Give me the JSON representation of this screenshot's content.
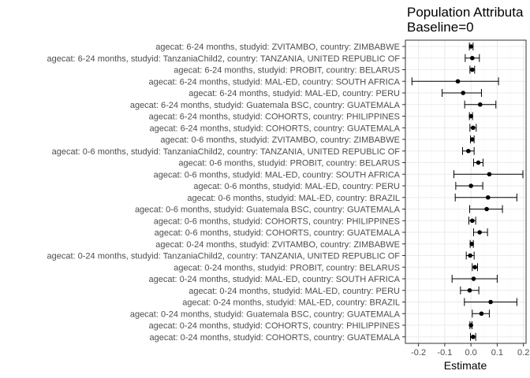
{
  "chart_data": {
    "type": "forest",
    "title": [
      "Population Attributa",
      "Baseline=0"
    ],
    "xlabel": "Estimate",
    "ylabel": "",
    "xlim": [
      -0.25,
      0.21
    ],
    "xticks": [
      -0.2,
      -0.1,
      0.0,
      0.1,
      0.2
    ],
    "xtick_labels": [
      "-0.2",
      "-0.1",
      "0.0",
      "0.1",
      "0.2"
    ],
    "grid": true,
    "colors": {
      "panel_border": "#333333",
      "grid_major": "#ebebeb",
      "grid_minor": "#f5f5f5",
      "point": "#000000",
      "text": "#4d4d4d"
    },
    "rows": [
      {
        "label": "agecat: 6-24 months, studyid: ZVITAMBO, country: ZIMBABWE",
        "estimate": 0.0,
        "lower": -0.006,
        "upper": 0.008
      },
      {
        "label": "agecat: 6-24 months, studyid: TanzaniaChild2, country: TANZANIA, UNITED REPUBLIC OF",
        "estimate": 0.005,
        "lower": -0.022,
        "upper": 0.032
      },
      {
        "label": "agecat: 6-24 months, studyid: PROBIT, country: BELARUS",
        "estimate": 0.005,
        "lower": -0.004,
        "upper": 0.014
      },
      {
        "label": "agecat: 6-24 months, studyid: MAL-ED, country: SOUTH AFRICA",
        "estimate": -0.05,
        "lower": -0.225,
        "upper": 0.105
      },
      {
        "label": "agecat: 6-24 months, studyid: MAL-ED, country: PERU",
        "estimate": -0.03,
        "lower": -0.11,
        "upper": 0.04
      },
      {
        "label": "agecat: 6-24 months, studyid: Guatemala BSC, country: GUATEMALA",
        "estimate": 0.035,
        "lower": -0.024,
        "upper": 0.095
      },
      {
        "label": "agecat: 6-24 months, studyid: COHORTS, country: PHILIPPINES",
        "estimate": 0.0,
        "lower": -0.006,
        "upper": 0.006
      },
      {
        "label": "agecat: 6-24 months, studyid: COHORTS, country: GUATEMALA",
        "estimate": 0.008,
        "lower": -0.004,
        "upper": 0.02
      },
      {
        "label": "agecat: 0-6 months, studyid: ZVITAMBO, country: ZIMBABWE",
        "estimate": 0.005,
        "lower": -0.002,
        "upper": 0.012
      },
      {
        "label": "agecat: 0-6 months, studyid: TanzaniaChild2, country: TANZANIA, UNITED REPUBLIC OF",
        "estimate": -0.01,
        "lower": -0.032,
        "upper": 0.012
      },
      {
        "label": "agecat: 0-6 months, studyid: PROBIT, country: BELARUS",
        "estimate": 0.028,
        "lower": 0.01,
        "upper": 0.046
      },
      {
        "label": "agecat: 0-6 months, studyid: MAL-ED, country: SOUTH AFRICA",
        "estimate": 0.07,
        "lower": -0.065,
        "upper": 0.198
      },
      {
        "label": "agecat: 0-6 months, studyid: MAL-ED, country: PERU",
        "estimate": 0.0,
        "lower": -0.058,
        "upper": 0.045
      },
      {
        "label": "agecat: 0-6 months, studyid: MAL-ED, country: BRAZIL",
        "estimate": 0.065,
        "lower": -0.06,
        "upper": 0.175
      },
      {
        "label": "agecat: 0-6 months, studyid: Guatemala BSC, country: GUATEMALA",
        "estimate": 0.06,
        "lower": -0.005,
        "upper": 0.12
      },
      {
        "label": "agecat: 0-6 months, studyid: COHORTS, country: PHILIPPINES",
        "estimate": 0.005,
        "lower": -0.008,
        "upper": 0.018
      },
      {
        "label": "agecat: 0-6 months, studyid: COHORTS, country: GUATEMALA",
        "estimate": 0.033,
        "lower": 0.01,
        "upper": 0.063
      },
      {
        "label": "agecat: 0-24 months, studyid: ZVITAMBO, country: ZIMBABWE",
        "estimate": 0.003,
        "lower": -0.003,
        "upper": 0.009
      },
      {
        "label": "agecat: 0-24 months, studyid: TanzaniaChild2, country: TANZANIA, UNITED REPUBLIC OF",
        "estimate": -0.003,
        "lower": -0.018,
        "upper": 0.012
      },
      {
        "label": "agecat: 0-24 months, studyid: PROBIT, country: BELARUS",
        "estimate": 0.015,
        "lower": 0.005,
        "upper": 0.025
      },
      {
        "label": "agecat: 0-24 months, studyid: MAL-ED, country: SOUTH AFRICA",
        "estimate": 0.01,
        "lower": -0.072,
        "upper": 0.1
      },
      {
        "label": "agecat: 0-24 months, studyid: MAL-ED, country: PERU",
        "estimate": -0.005,
        "lower": -0.04,
        "upper": 0.03
      },
      {
        "label": "agecat: 0-24 months, studyid: MAL-ED, country: BRAZIL",
        "estimate": 0.075,
        "lower": -0.025,
        "upper": 0.175
      },
      {
        "label": "agecat: 0-24 months, studyid: Guatemala BSC, country: GUATEMALA",
        "estimate": 0.04,
        "lower": 0.005,
        "upper": 0.07
      },
      {
        "label": "agecat: 0-24 months, studyid: COHORTS, country: PHILIPPINES",
        "estimate": 0.0,
        "lower": -0.004,
        "upper": 0.004
      },
      {
        "label": "agecat: 0-24 months, studyid: COHORTS, country: GUATEMALA",
        "estimate": 0.008,
        "lower": -0.002,
        "upper": 0.018
      }
    ]
  }
}
